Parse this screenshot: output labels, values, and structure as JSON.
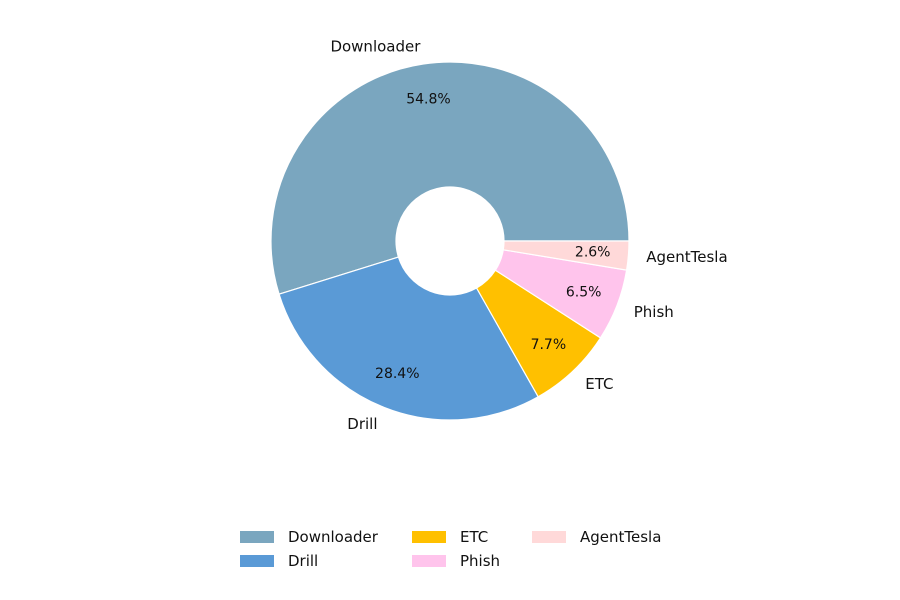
{
  "chart_data": {
    "type": "pie",
    "donut": true,
    "title": "",
    "categories": [
      "Downloader",
      "Drill",
      "ETC",
      "Phish",
      "AgentTesla"
    ],
    "values": [
      54.8,
      28.4,
      7.7,
      6.5,
      2.6
    ],
    "pct_labels": [
      "54.8%",
      "28.4%",
      "7.7%",
      "6.5%",
      "2.6%"
    ],
    "colors": [
      "#7aa6bf",
      "#5a9ad6",
      "#ffc000",
      "#ffc4ec",
      "#ffd9d9"
    ],
    "start": "counter-clockwise from 0°",
    "legend": {
      "position": "bottom-center",
      "columns": 3
    }
  }
}
